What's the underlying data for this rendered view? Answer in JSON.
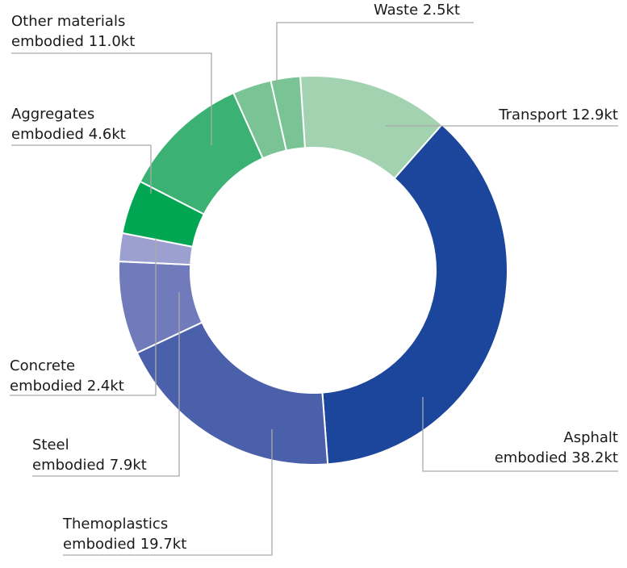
{
  "chart_data": {
    "type": "pie",
    "variant": "donut",
    "unit": "kt",
    "slices": [
      {
        "line1": "Transport 12.9kt",
        "line2": "",
        "value": 12.9,
        "color": "#a3d2b0"
      },
      {
        "line1": "Asphalt",
        "line2": "embodied 38.2kt",
        "value": 38.2,
        "color": "#1c469c"
      },
      {
        "line1": "Themoplastics",
        "line2": "embodied 19.7kt",
        "value": 19.7,
        "color": "#4b60ab"
      },
      {
        "line1": "Steel",
        "line2": "embodied 7.9kt",
        "value": 7.9,
        "color": "#717bbb"
      },
      {
        "line1": "Concrete",
        "line2": "embodied 2.4kt",
        "value": 2.4,
        "color": "#9ca0d0"
      },
      {
        "line1": "Aggregates",
        "line2": "embodied 4.6kt",
        "value": 4.6,
        "color": "#00a651"
      },
      {
        "line1": "Other materials",
        "line2": "embodied 11.0kt",
        "value": 11.0,
        "color": "#3bb273"
      },
      {
        "line1": "",
        "line2": "",
        "value": 3.3,
        "color": "#79c394"
      },
      {
        "line1": "Waste 2.5kt",
        "line2": "",
        "value": 2.5,
        "color": "#79c394"
      }
    ]
  }
}
